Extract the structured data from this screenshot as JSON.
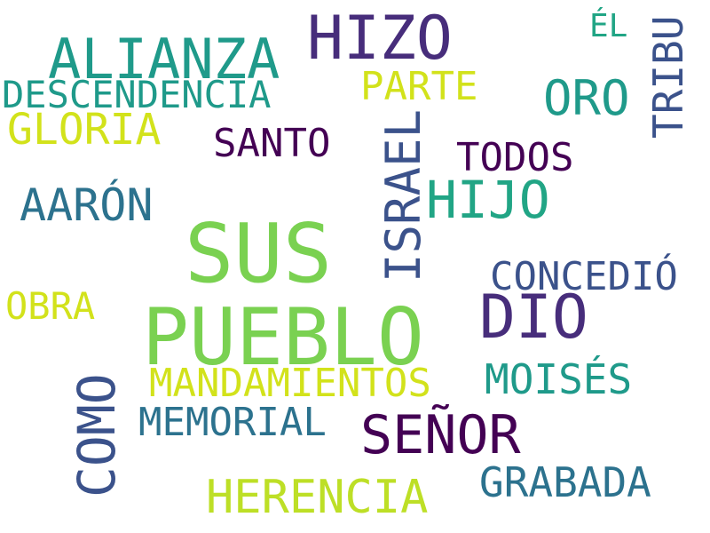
{
  "wordcloud": {
    "words": [
      {
        "text": "SUS",
        "color": "#7ad151"
      },
      {
        "text": "PUEBLO",
        "color": "#7ad151"
      },
      {
        "text": "HIZO",
        "color": "#472d7b"
      },
      {
        "text": "DIO",
        "color": "#472d7b"
      },
      {
        "text": "ALIANZA",
        "color": "#1f9a8a"
      },
      {
        "text": "SEÑOR",
        "color": "#440154"
      },
      {
        "text": "ISRAEL",
        "color": "#3b528b"
      },
      {
        "text": "COMO",
        "color": "#3b528b"
      },
      {
        "text": "HIJO",
        "color": "#21a585"
      },
      {
        "text": "ORO",
        "color": "#1f9a8a"
      },
      {
        "text": "HERENCIA",
        "color": "#bddf26"
      },
      {
        "text": "AARÓN",
        "color": "#2c728e"
      },
      {
        "text": "GLORIA",
        "color": "#d2e21b"
      },
      {
        "text": "TRIBU",
        "color": "#3b528b"
      },
      {
        "text": "MOISÉS",
        "color": "#1f9a8a"
      },
      {
        "text": "GRABADA",
        "color": "#2c728e"
      },
      {
        "text": "MANDAMIENTOS",
        "color": "#d2e21b"
      },
      {
        "text": "MEMORIAL",
        "color": "#2c728e"
      },
      {
        "text": "CONCEDIÓ",
        "color": "#3b528b"
      },
      {
        "text": "DESCENDENCIA",
        "color": "#1f9a8a"
      },
      {
        "text": "SANTO",
        "color": "#440154"
      },
      {
        "text": "PARTE",
        "color": "#d2e21b"
      },
      {
        "text": "TODOS",
        "color": "#440154"
      },
      {
        "text": "OBRA",
        "color": "#d2e21b"
      },
      {
        "text": "ÉL",
        "color": "#21a585"
      }
    ]
  }
}
